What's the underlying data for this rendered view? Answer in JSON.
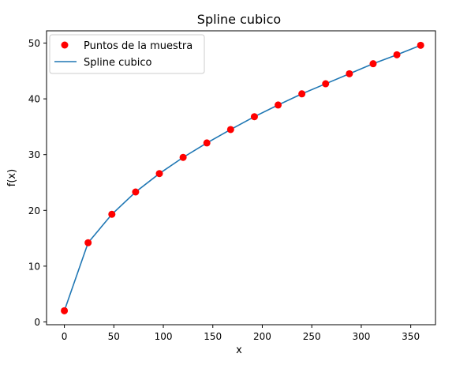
{
  "chart_data": {
    "type": "line",
    "title": "Spline cubico",
    "xlabel": "x",
    "ylabel": "f(x)",
    "xlim": [
      -18,
      375
    ],
    "ylim": [
      -0.5,
      52.2
    ],
    "xticks": [
      0,
      50,
      100,
      150,
      200,
      250,
      300,
      350
    ],
    "yticks": [
      0,
      10,
      20,
      30,
      40,
      50
    ],
    "grid": false,
    "legend_position": "top-left",
    "series": [
      {
        "name": "Puntos de la muestra",
        "kind": "scatter",
        "color": "#ff0000",
        "x": [
          0,
          24,
          48,
          72,
          96,
          120,
          144,
          168,
          192,
          216,
          240,
          264,
          288,
          312,
          336,
          360
        ],
        "y": [
          2.0,
          14.2,
          19.3,
          23.3,
          26.6,
          29.5,
          32.1,
          34.5,
          36.8,
          38.9,
          40.9,
          42.7,
          44.5,
          46.3,
          47.9,
          49.6
        ]
      },
      {
        "name": "Spline cubico",
        "kind": "line",
        "color": "#1f77b4",
        "x": [
          0,
          24,
          48,
          72,
          96,
          120,
          144,
          168,
          192,
          216,
          240,
          264,
          288,
          312,
          336,
          360
        ],
        "y": [
          2.0,
          14.2,
          19.3,
          23.3,
          26.6,
          29.5,
          32.1,
          34.5,
          36.8,
          38.9,
          40.9,
          42.7,
          44.5,
          46.3,
          47.9,
          49.6
        ]
      }
    ]
  }
}
